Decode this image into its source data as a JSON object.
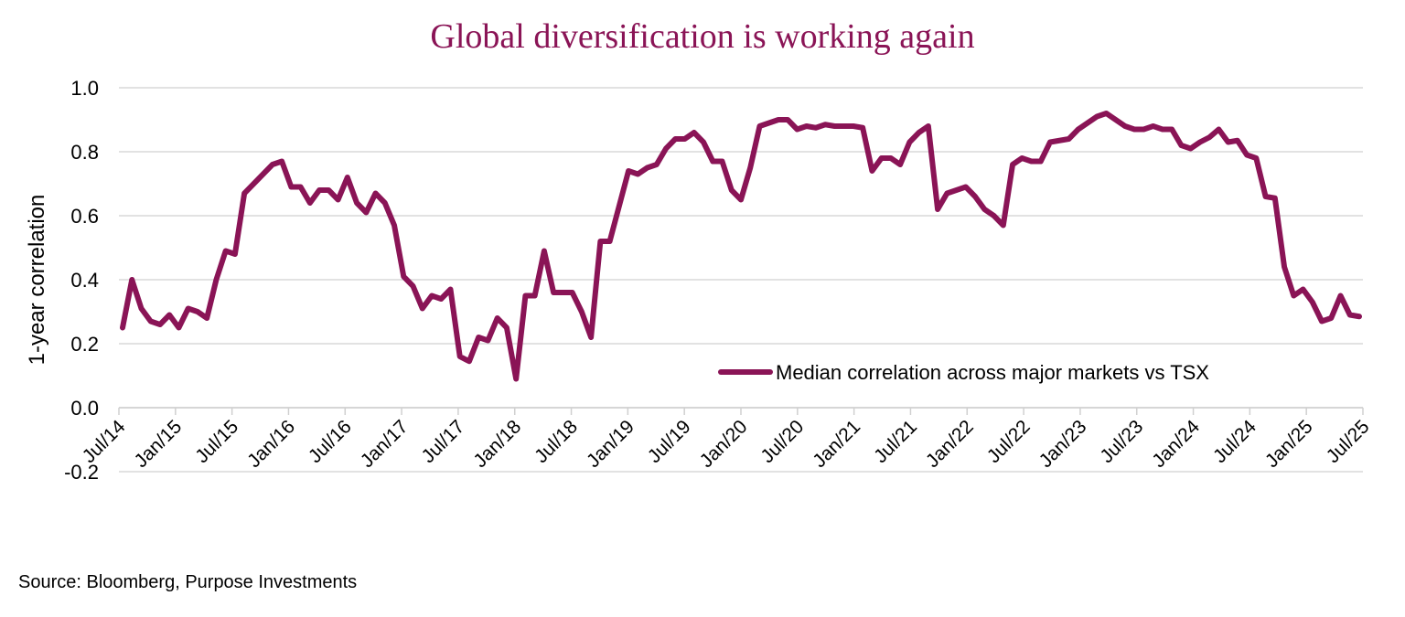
{
  "title": "Global diversification is working again",
  "source": "Source: Bloomberg, Purpose Investments",
  "colors": {
    "series": "#8a1456",
    "grid": "#d9d9d9",
    "title": "#8a1456"
  },
  "chart_data": {
    "type": "line",
    "title": "Global diversification is working again",
    "ylabel": "1-year correlation",
    "xlabel": "",
    "ylim": [
      -0.2,
      1.0
    ],
    "yticks": [
      "1.0",
      "0.8",
      "0.6",
      "0.4",
      "0.2",
      "0.0",
      "-0.2"
    ],
    "ytick_values": [
      1.0,
      0.8,
      0.6,
      0.4,
      0.2,
      0.0,
      -0.2
    ],
    "xticks": [
      "Jul/14",
      "Jan/15",
      "Jul/15",
      "Jan/16",
      "Jul/16",
      "Jan/17",
      "Jul/17",
      "Jan/18",
      "Jul/18",
      "Jan/19",
      "Jul/19",
      "Jan/20",
      "Jul/20",
      "Jan/21",
      "Jul/21",
      "Jan/22",
      "Jul/22",
      "Jan/23",
      "Jul/23",
      "Jan/24",
      "Jul/24",
      "Jan/25",
      "Jul/25"
    ],
    "grid": true,
    "legend_position": "bottom-right",
    "series": [
      {
        "name": "Median correlation across major markets vs TSX",
        "x": [
          "2014-07",
          "2014-08",
          "2014-09",
          "2014-10",
          "2014-11",
          "2014-12",
          "2015-01",
          "2015-02",
          "2015-03",
          "2015-04",
          "2015-05",
          "2015-06",
          "2015-07",
          "2015-08",
          "2015-09",
          "2015-10",
          "2015-11",
          "2015-12",
          "2016-01",
          "2016-02",
          "2016-03",
          "2016-04",
          "2016-05",
          "2016-06",
          "2016-07",
          "2016-08",
          "2016-09",
          "2016-10",
          "2016-11",
          "2016-12",
          "2017-01",
          "2017-02",
          "2017-03",
          "2017-04",
          "2017-05",
          "2017-06",
          "2017-07",
          "2017-08",
          "2017-09",
          "2017-10",
          "2017-11",
          "2017-12",
          "2018-01",
          "2018-02",
          "2018-03",
          "2018-04",
          "2018-05",
          "2018-06",
          "2018-07",
          "2018-08",
          "2018-09",
          "2018-10",
          "2018-11",
          "2018-12",
          "2019-01",
          "2019-02",
          "2019-03",
          "2019-04",
          "2019-05",
          "2019-06",
          "2019-07",
          "2019-08",
          "2019-09",
          "2019-10",
          "2019-11",
          "2019-12",
          "2020-01",
          "2020-02",
          "2020-03",
          "2020-04",
          "2020-05",
          "2020-06",
          "2020-07",
          "2020-08",
          "2020-09",
          "2020-10",
          "2020-11",
          "2020-12",
          "2021-01",
          "2021-02",
          "2021-03",
          "2021-04",
          "2021-05",
          "2021-06",
          "2021-07",
          "2021-08",
          "2021-09",
          "2021-10",
          "2021-11",
          "2021-12",
          "2022-01",
          "2022-02",
          "2022-03",
          "2022-04",
          "2022-05",
          "2022-06",
          "2022-07",
          "2022-08",
          "2022-09",
          "2022-10",
          "2022-11",
          "2022-12",
          "2023-01",
          "2023-02",
          "2023-03",
          "2023-04",
          "2023-05",
          "2023-06",
          "2023-07",
          "2023-08",
          "2023-09",
          "2023-10",
          "2023-11",
          "2023-12",
          "2024-01",
          "2024-02",
          "2024-03",
          "2024-04",
          "2024-05",
          "2024-06",
          "2024-07",
          "2024-08",
          "2024-09",
          "2024-10",
          "2024-11",
          "2024-12",
          "2025-01",
          "2025-02",
          "2025-03",
          "2025-04",
          "2025-05",
          "2025-06",
          "2025-07"
        ],
        "values": [
          0.25,
          0.4,
          0.31,
          0.27,
          0.26,
          0.29,
          0.25,
          0.31,
          0.3,
          0.28,
          0.4,
          0.49,
          0.48,
          0.67,
          0.7,
          0.73,
          0.76,
          0.77,
          0.69,
          0.69,
          0.64,
          0.68,
          0.68,
          0.65,
          0.72,
          0.64,
          0.61,
          0.67,
          0.64,
          0.57,
          0.41,
          0.38,
          0.31,
          0.35,
          0.34,
          0.37,
          0.16,
          0.145,
          0.22,
          0.21,
          0.28,
          0.25,
          0.09,
          0.35,
          0.35,
          0.49,
          0.36,
          0.36,
          0.36,
          0.3,
          0.22,
          0.52,
          0.52,
          0.63,
          0.74,
          0.73,
          0.75,
          0.76,
          0.81,
          0.84,
          0.84,
          0.86,
          0.83,
          0.77,
          0.77,
          0.68,
          0.65,
          0.75,
          0.88,
          0.89,
          0.9,
          0.9,
          0.87,
          0.88,
          0.875,
          0.885,
          0.88,
          0.88,
          0.88,
          0.875,
          0.74,
          0.78,
          0.78,
          0.76,
          0.83,
          0.86,
          0.88,
          0.62,
          0.67,
          0.68,
          0.69,
          0.66,
          0.62,
          0.6,
          0.57,
          0.76,
          0.78,
          0.77,
          0.77,
          0.83,
          0.835,
          0.84,
          0.87,
          0.89,
          0.91,
          0.92,
          0.9,
          0.88,
          0.87,
          0.87,
          0.88,
          0.87,
          0.87,
          0.82,
          0.81,
          0.83,
          0.845,
          0.87,
          0.83,
          0.835,
          0.79,
          0.78,
          0.66,
          0.655,
          0.44,
          0.35,
          0.37,
          0.33,
          0.27,
          0.28,
          0.35,
          0.29,
          0.285
        ]
      }
    ]
  }
}
